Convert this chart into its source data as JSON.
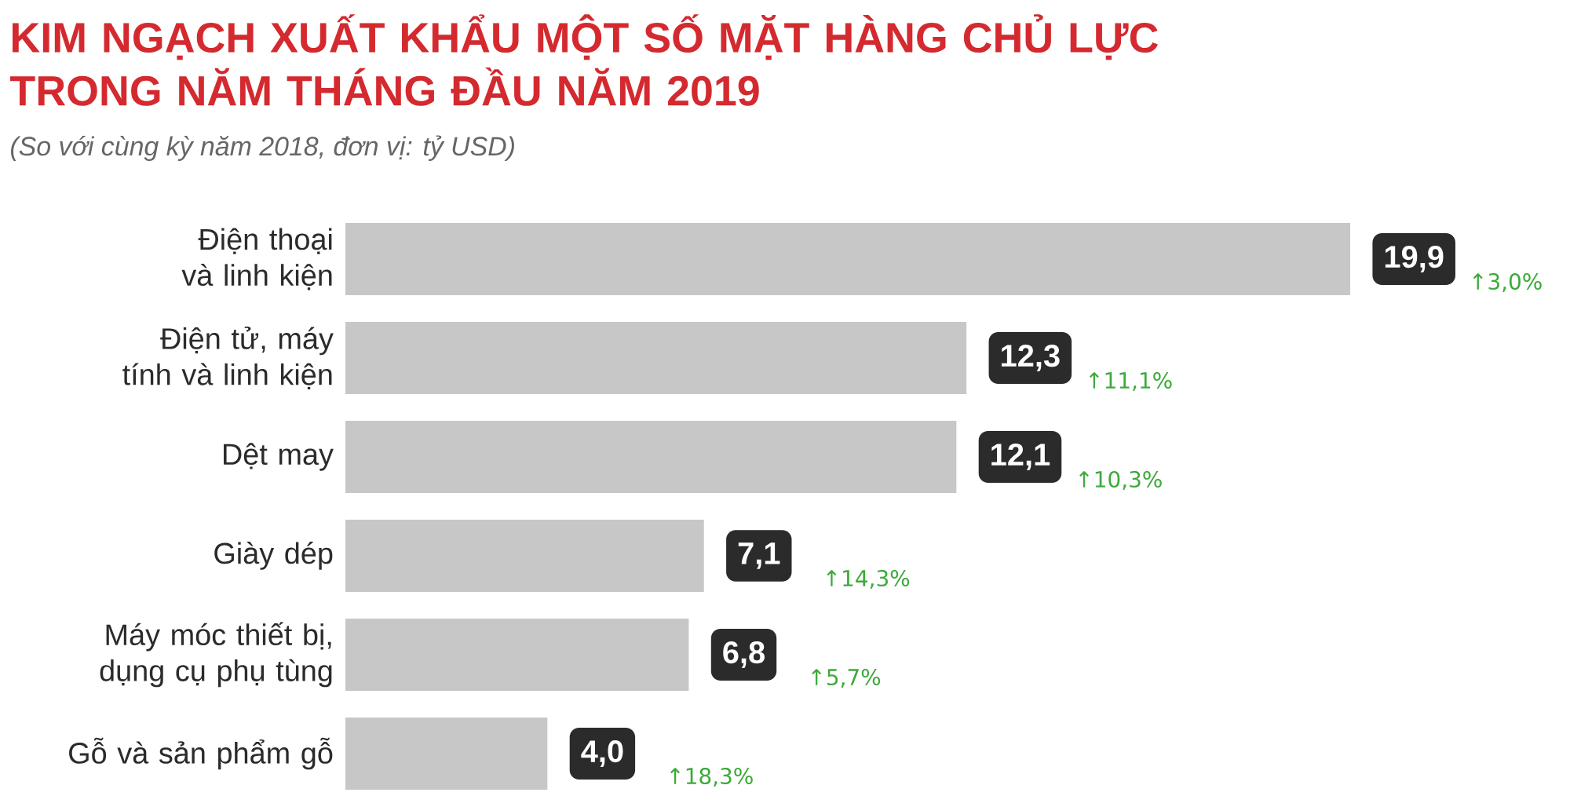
{
  "chart_data": {
    "type": "bar",
    "orientation": "horizontal",
    "title": "KIM NGẠCH XUẤT KHẨU MỘT SỐ MẶT HÀNG CHỦ LỰC TRONG NĂM THÁNG ĐẦU NĂM 2019",
    "subtitle": "(So với cùng kỳ năm 2018, đơn vị: tỷ USD)",
    "categories": [
      "Điện thoại và linh kiện",
      "Điện tử, máy tính và linh kiện",
      "Dệt may",
      "Giày dép",
      "Máy móc thiết bị, dụng cụ phụ tùng",
      "Gỗ và sản phẩm gỗ"
    ],
    "values": [
      19.9,
      12.3,
      12.1,
      7.1,
      6.8,
      4.0
    ],
    "value_labels": [
      "19,9",
      "12,3",
      "12,1",
      "7,1",
      "6,8",
      "4,0"
    ],
    "color": "#c8c7c7",
    "annotations": [
      "↑3,0%",
      "↑11,1%",
      "↑10,3%",
      "↑14,3%",
      "↑5,7%",
      "↑18,3%"
    ]
  }
}
